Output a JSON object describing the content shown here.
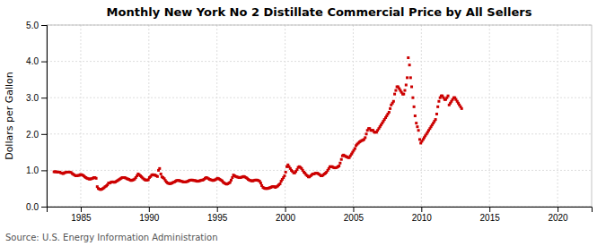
{
  "chart_data": {
    "type": "scatter",
    "title": "Monthly New York No 2 Distillate Commercial Price by All Sellers",
    "ylabel": "Dollars per Gallon",
    "source": "Source: U.S. Energy Information Administration",
    "color": "#cc0000",
    "marker": "square",
    "grid": true,
    "xlim": [
      1982.5,
      2022.5
    ],
    "ylim": [
      0.0,
      5.0
    ],
    "xticks": [
      1985,
      1990,
      1995,
      2000,
      2005,
      2010,
      2015,
      2020
    ],
    "yticks": [
      {
        "value": 0.0,
        "label": "0.0"
      },
      {
        "value": 1.0,
        "label": "1.0"
      },
      {
        "value": 2.0,
        "label": "2.0"
      },
      {
        "value": 3.0,
        "label": "3.0"
      },
      {
        "value": 4.0,
        "label": "4.0"
      },
      {
        "value": 5.0,
        "label": "5.0"
      }
    ],
    "x": [
      1983.04,
      1983.13,
      1983.21,
      1983.29,
      1983.38,
      1983.46,
      1983.54,
      1983.63,
      1983.71,
      1983.79,
      1983.88,
      1983.96,
      1984.04,
      1984.13,
      1984.21,
      1984.29,
      1984.38,
      1984.46,
      1984.54,
      1984.63,
      1984.71,
      1984.79,
      1984.88,
      1984.96,
      1985.04,
      1985.13,
      1985.21,
      1985.29,
      1985.38,
      1985.46,
      1985.54,
      1985.63,
      1985.71,
      1985.79,
      1985.88,
      1985.96,
      1986.04,
      1986.13,
      1986.21,
      1986.29,
      1986.38,
      1986.46,
      1986.54,
      1986.63,
      1986.71,
      1986.79,
      1986.88,
      1986.96,
      1987.04,
      1987.13,
      1987.21,
      1987.29,
      1987.38,
      1987.46,
      1987.54,
      1987.63,
      1987.71,
      1987.79,
      1987.88,
      1987.96,
      1988.04,
      1988.13,
      1988.21,
      1988.29,
      1988.38,
      1988.46,
      1988.54,
      1988.63,
      1988.71,
      1988.79,
      1988.88,
      1988.96,
      1989.04,
      1989.13,
      1989.21,
      1989.29,
      1989.38,
      1989.46,
      1989.54,
      1989.63,
      1989.71,
      1989.79,
      1989.88,
      1989.96,
      1990.04,
      1990.13,
      1990.21,
      1990.29,
      1990.38,
      1990.46,
      1990.54,
      1990.63,
      1990.71,
      1990.79,
      1990.88,
      1990.96,
      1991.04,
      1991.13,
      1991.21,
      1991.29,
      1991.38,
      1991.46,
      1991.54,
      1991.63,
      1991.71,
      1991.79,
      1991.88,
      1991.96,
      1992.04,
      1992.13,
      1992.21,
      1992.29,
      1992.38,
      1992.46,
      1992.54,
      1992.63,
      1992.71,
      1992.79,
      1992.88,
      1992.96,
      1993.04,
      1993.13,
      1993.21,
      1993.29,
      1993.38,
      1993.46,
      1993.54,
      1993.63,
      1993.71,
      1993.79,
      1993.88,
      1993.96,
      1994.04,
      1994.13,
      1994.21,
      1994.29,
      1994.38,
      1994.46,
      1994.54,
      1994.63,
      1994.71,
      1994.79,
      1994.88,
      1994.96,
      1995.04,
      1995.13,
      1995.21,
      1995.29,
      1995.38,
      1995.46,
      1995.54,
      1995.63,
      1995.71,
      1995.79,
      1995.88,
      1995.96,
      1996.04,
      1996.13,
      1996.21,
      1996.29,
      1996.38,
      1996.46,
      1996.54,
      1996.63,
      1996.71,
      1996.79,
      1996.88,
      1996.96,
      1997.04,
      1997.13,
      1997.21,
      1997.29,
      1997.38,
      1997.46,
      1997.54,
      1997.63,
      1997.71,
      1997.79,
      1997.88,
      1997.96,
      1998.04,
      1998.13,
      1998.21,
      1998.29,
      1998.38,
      1998.46,
      1998.54,
      1998.63,
      1998.71,
      1998.79,
      1998.88,
      1998.96,
      1999.04,
      1999.13,
      1999.21,
      1999.29,
      1999.38,
      1999.46,
      1999.54,
      1999.63,
      1999.71,
      1999.79,
      1999.88,
      1999.96,
      2000.04,
      2000.13,
      2000.21,
      2000.29,
      2000.38,
      2000.46,
      2000.54,
      2000.63,
      2000.71,
      2000.79,
      2000.88,
      2000.96,
      2001.04,
      2001.13,
      2001.21,
      2001.29,
      2001.38,
      2001.46,
      2001.54,
      2001.63,
      2001.71,
      2001.79,
      2001.88,
      2001.96,
      2002.04,
      2002.13,
      2002.21,
      2002.29,
      2002.38,
      2002.46,
      2002.54,
      2002.63,
      2002.71,
      2002.79,
      2002.88,
      2002.96,
      2003.04,
      2003.13,
      2003.21,
      2003.29,
      2003.38,
      2003.46,
      2003.54,
      2003.63,
      2003.71,
      2003.79,
      2003.88,
      2003.96,
      2004.04,
      2004.13,
      2004.21,
      2004.29,
      2004.38,
      2004.46,
      2004.54,
      2004.63,
      2004.71,
      2004.79,
      2004.88,
      2004.96,
      2005.04,
      2005.13,
      2005.21,
      2005.29,
      2005.38,
      2005.46,
      2005.54,
      2005.63,
      2005.71,
      2005.79,
      2005.88,
      2005.96,
      2006.04,
      2006.13,
      2006.21,
      2006.29,
      2006.38,
      2006.46,
      2006.54,
      2006.63,
      2006.71,
      2006.79,
      2006.88,
      2006.96,
      2007.04,
      2007.13,
      2007.21,
      2007.29,
      2007.38,
      2007.46,
      2007.54,
      2007.63,
      2007.71,
      2007.79,
      2007.88,
      2007.96,
      2008.04,
      2008.13,
      2008.21,
      2008.29,
      2008.38,
      2008.46,
      2008.54,
      2008.63,
      2008.71,
      2008.79,
      2008.88,
      2008.96,
      2009.04,
      2009.13,
      2009.21,
      2009.29,
      2009.38,
      2009.46,
      2009.54,
      2009.63,
      2009.71,
      2009.79,
      2009.88,
      2009.96,
      2010.04,
      2010.13,
      2010.21,
      2010.29,
      2010.38,
      2010.46,
      2010.54,
      2010.63,
      2010.71,
      2010.79,
      2010.88,
      2010.96,
      2011.04,
      2011.13,
      2011.21,
      2011.29,
      2011.38,
      2011.46,
      2011.54,
      2011.63,
      2011.71,
      2011.79,
      2011.88,
      2011.96,
      2012.04,
      2012.13,
      2012.21,
      2012.29,
      2012.38,
      2012.46,
      2012.54,
      2012.63,
      2012.71,
      2012.79,
      2012.88,
      2012.96
    ],
    "values": [
      0.96,
      0.96,
      0.96,
      0.95,
      0.95,
      0.95,
      0.93,
      0.92,
      0.91,
      0.93,
      0.94,
      0.95,
      0.95,
      0.95,
      0.95,
      0.94,
      0.91,
      0.89,
      0.87,
      0.85,
      0.85,
      0.86,
      0.86,
      0.88,
      0.88,
      0.87,
      0.85,
      0.82,
      0.8,
      0.78,
      0.77,
      0.76,
      0.76,
      0.77,
      0.78,
      0.8,
      0.8,
      0.78,
      0.55,
      0.5,
      0.48,
      0.47,
      0.48,
      0.5,
      0.52,
      0.55,
      0.57,
      0.6,
      0.65,
      0.65,
      0.67,
      0.68,
      0.68,
      0.67,
      0.68,
      0.7,
      0.72,
      0.74,
      0.76,
      0.78,
      0.8,
      0.8,
      0.8,
      0.79,
      0.77,
      0.76,
      0.75,
      0.73,
      0.72,
      0.73,
      0.74,
      0.76,
      0.8,
      0.85,
      0.9,
      0.88,
      0.85,
      0.82,
      0.79,
      0.76,
      0.74,
      0.73,
      0.73,
      0.74,
      0.8,
      0.83,
      0.87,
      0.88,
      0.87,
      0.87,
      0.85,
      0.83,
      1.0,
      1.05,
      0.9,
      0.82,
      0.8,
      0.77,
      0.72,
      0.68,
      0.65,
      0.64,
      0.63,
      0.64,
      0.65,
      0.67,
      0.68,
      0.7,
      0.72,
      0.72,
      0.72,
      0.71,
      0.7,
      0.69,
      0.68,
      0.68,
      0.68,
      0.69,
      0.7,
      0.72,
      0.73,
      0.73,
      0.73,
      0.72,
      0.72,
      0.71,
      0.7,
      0.7,
      0.71,
      0.72,
      0.73,
      0.73,
      0.75,
      0.78,
      0.8,
      0.79,
      0.77,
      0.75,
      0.74,
      0.73,
      0.72,
      0.73,
      0.74,
      0.76,
      0.78,
      0.77,
      0.75,
      0.73,
      0.71,
      0.67,
      0.65,
      0.63,
      0.62,
      0.63,
      0.65,
      0.67,
      0.73,
      0.8,
      0.87,
      0.85,
      0.83,
      0.82,
      0.81,
      0.8,
      0.8,
      0.81,
      0.82,
      0.83,
      0.82,
      0.8,
      0.78,
      0.75,
      0.73,
      0.72,
      0.71,
      0.71,
      0.72,
      0.73,
      0.73,
      0.73,
      0.72,
      0.7,
      0.65,
      0.58,
      0.53,
      0.51,
      0.5,
      0.5,
      0.5,
      0.51,
      0.52,
      0.53,
      0.55,
      0.55,
      0.55,
      0.53,
      0.55,
      0.57,
      0.6,
      0.63,
      0.7,
      0.75,
      0.8,
      0.85,
      0.95,
      1.1,
      1.15,
      1.1,
      1.05,
      1.0,
      0.97,
      0.93,
      0.93,
      0.97,
      1.02,
      1.08,
      1.1,
      1.08,
      1.05,
      1.0,
      0.95,
      0.92,
      0.88,
      0.85,
      0.82,
      0.82,
      0.85,
      0.88,
      0.9,
      0.9,
      0.92,
      0.92,
      0.92,
      0.9,
      0.88,
      0.85,
      0.85,
      0.87,
      0.9,
      0.92,
      0.95,
      1.0,
      1.05,
      1.1,
      1.1,
      1.1,
      1.08,
      1.07,
      1.07,
      1.08,
      1.1,
      1.12,
      1.2,
      1.3,
      1.4,
      1.42,
      1.4,
      1.38,
      1.37,
      1.35,
      1.35,
      1.4,
      1.45,
      1.5,
      1.55,
      1.6,
      1.68,
      1.72,
      1.75,
      1.78,
      1.8,
      1.82,
      1.83,
      1.85,
      1.9,
      2.0,
      2.1,
      2.15,
      2.15,
      2.1,
      2.1,
      2.1,
      2.05,
      2.05,
      2.05,
      2.1,
      2.15,
      2.2,
      2.25,
      2.3,
      2.35,
      2.4,
      2.45,
      2.5,
      2.55,
      2.6,
      2.7,
      2.8,
      2.85,
      2.9,
      3.1,
      3.2,
      3.3,
      3.3,
      3.25,
      3.2,
      3.15,
      3.1,
      3.1,
      3.2,
      3.35,
      3.55,
      4.1,
      3.9,
      3.55,
      3.3,
      3.0,
      2.75,
      2.5,
      2.3,
      2.2,
      2.1,
      1.85,
      1.75,
      1.8,
      1.85,
      1.9,
      1.95,
      2.0,
      2.05,
      2.1,
      2.15,
      2.2,
      2.25,
      2.3,
      2.35,
      2.4,
      2.55,
      2.75,
      2.9,
      3.0,
      3.05,
      3.05,
      3.0,
      2.95,
      2.95,
      3.0,
      3.05,
      2.8,
      2.85,
      2.9,
      2.95,
      3.0,
      3.0,
      2.95,
      2.9,
      2.85,
      2.8,
      2.75,
      2.7
    ]
  }
}
